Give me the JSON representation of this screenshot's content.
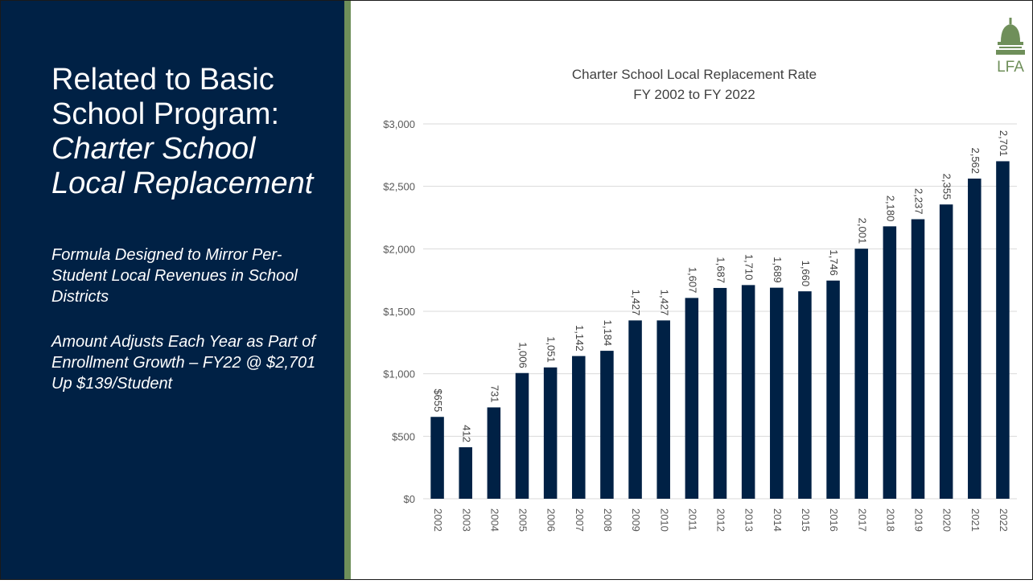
{
  "slide": {
    "title_line1": "Related to Basic",
    "title_line2": "School Program:",
    "title_italic1": "Charter School",
    "title_italic2": "Local Replacement",
    "bullets": [
      "Formula Designed to Mirror Per-Student Local Revenues in School Districts",
      "Amount Adjusts Each Year as Part of Enrollment Growth – FY22 @ $2,701 Up $139/Student"
    ],
    "logo_text": "LFA"
  },
  "colors": {
    "panel": "#002145",
    "accent": "#6f8f5a",
    "bar": "#002145",
    "logo": "#6f8f5a"
  },
  "chart_data": {
    "type": "bar",
    "title": "Charter School Local Replacement Rate",
    "subtitle": "FY 2002 to FY 2022",
    "xlabel": "",
    "ylabel": "",
    "categories": [
      "2002",
      "2003",
      "2004",
      "2005",
      "2006",
      "2007",
      "2008",
      "2009",
      "2010",
      "2011",
      "2012",
      "2013",
      "2014",
      "2015",
      "2016",
      "2017",
      "2018",
      "2019",
      "2020",
      "2021",
      "2022"
    ],
    "values": [
      655,
      412,
      731,
      1006,
      1051,
      1142,
      1184,
      1427,
      1427,
      1607,
      1687,
      1710,
      1689,
      1660,
      1746,
      2001,
      2180,
      2237,
      2355,
      2562,
      2701
    ],
    "data_labels": [
      "$655",
      "412",
      "731",
      "1,006",
      "1,051",
      "1,142",
      "1,184",
      "1,427",
      "1,427",
      "1,607",
      "1,687",
      "1,710",
      "1,689",
      "1,660",
      "1,746",
      "2,001",
      "2,180",
      "2,237",
      "2,355",
      "2,562",
      "2,701"
    ],
    "yticks": [
      "$0",
      "$500",
      "$1,000",
      "$1,500",
      "$2,000",
      "$2,500",
      "$3,000"
    ],
    "ylim": [
      0,
      3000
    ],
    "grid": true,
    "legend": "none"
  }
}
